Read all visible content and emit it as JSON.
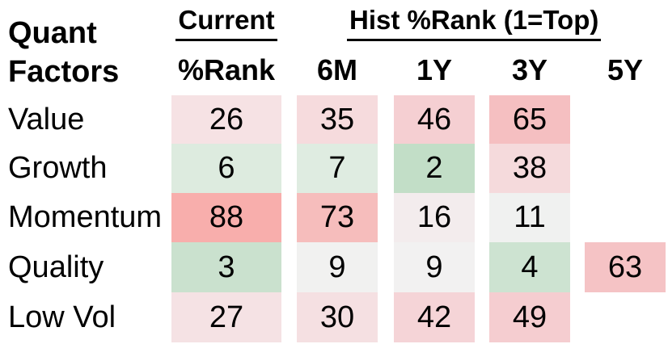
{
  "title": {
    "line1": "Quant",
    "line2": "Factors"
  },
  "header": {
    "current_group": "Current",
    "hist_group": "Hist %Rank (1=Top)",
    "columns": [
      "%Rank",
      "6M",
      "1Y",
      "3Y",
      "5Y"
    ]
  },
  "table": {
    "rows": [
      {
        "label": "Value",
        "cells": [
          {
            "value": "26",
            "bg": "#F6E2E4"
          },
          {
            "value": "35",
            "bg": "#F6DBDD"
          },
          {
            "value": "46",
            "bg": "#F5CFD2"
          },
          {
            "value": "65",
            "bg": "#F5BFC1"
          },
          {
            "value": "",
            "bg": null
          }
        ]
      },
      {
        "label": "Growth",
        "cells": [
          {
            "value": "6",
            "bg": "#DDEBDF"
          },
          {
            "value": "7",
            "bg": "#DFECE1"
          },
          {
            "value": "2",
            "bg": "#C2DEC7"
          },
          {
            "value": "38",
            "bg": "#F5DADC"
          },
          {
            "value": "",
            "bg": null
          }
        ]
      },
      {
        "label": "Momentum",
        "cells": [
          {
            "value": "88",
            "bg": "#F8AEAC"
          },
          {
            "value": "73",
            "bg": "#F6BDBC"
          },
          {
            "value": "16",
            "bg": "#F3ECED"
          },
          {
            "value": "11",
            "bg": "#F0F1F0"
          },
          {
            "value": "",
            "bg": null
          }
        ]
      },
      {
        "label": "Quality",
        "cells": [
          {
            "value": "3",
            "bg": "#CAE1CE"
          },
          {
            "value": "9",
            "bg": "#F1F1F0"
          },
          {
            "value": "9",
            "bg": "#F2F1F1"
          },
          {
            "value": "4",
            "bg": "#CDE3D1"
          },
          {
            "value": "63",
            "bg": "#F5C3C5"
          }
        ]
      },
      {
        "label": "Low Vol",
        "cells": [
          {
            "value": "27",
            "bg": "#F5E2E4"
          },
          {
            "value": "30",
            "bg": "#F5E0E2"
          },
          {
            "value": "42",
            "bg": "#F5D4D7"
          },
          {
            "value": "49",
            "bg": "#F5CDD0"
          },
          {
            "value": "",
            "bg": null
          }
        ]
      }
    ]
  },
  "heatmap_scale": {
    "low_color_green": "#63BE7B",
    "mid_color_white": "#FFFFFF",
    "high_color_red": "#F8696B",
    "meaning": "1=Top (green) to 100 (red)"
  },
  "chart_data": {
    "type": "heatmap",
    "title": "Quant Factors %Rank (1=Top)",
    "rows": [
      "Value",
      "Growth",
      "Momentum",
      "Quality",
      "Low Vol"
    ],
    "columns": [
      "Current %Rank",
      "6M",
      "1Y",
      "3Y",
      "5Y"
    ],
    "values": [
      [
        26,
        35,
        46,
        65,
        null
      ],
      [
        6,
        7,
        2,
        38,
        null
      ],
      [
        88,
        73,
        16,
        11,
        null
      ],
      [
        3,
        9,
        9,
        4,
        63
      ],
      [
        27,
        30,
        42,
        49,
        null
      ]
    ],
    "color_rule": "low values green, mid ~white, high values red",
    "layout": "table heatmap, no gridlines, white gaps between columns"
  }
}
